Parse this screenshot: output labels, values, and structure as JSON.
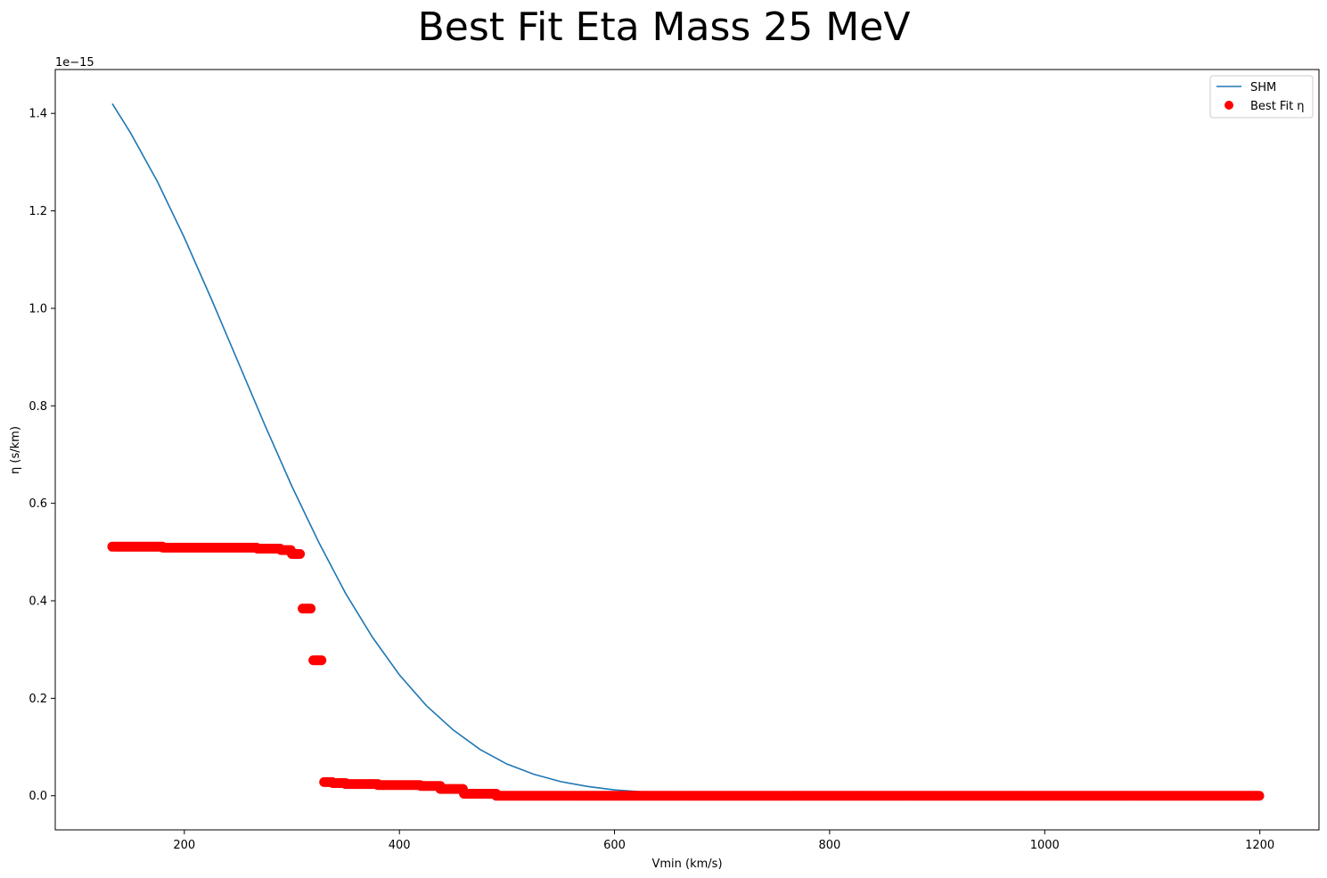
{
  "chart_data": {
    "type": "scatter",
    "title": "Best Fit Eta Mass 25 MeV",
    "xlabel": "Vmin (km/s)",
    "ylabel": "η (s/km)",
    "y_offset_label": "1e−15",
    "xlim": [
      80,
      1255
    ],
    "ylim": [
      -0.07,
      1.49
    ],
    "x_ticks": [
      200,
      400,
      600,
      800,
      1000,
      1200
    ],
    "x_tick_labels": [
      "200",
      "400",
      "600",
      "800",
      "1000",
      "1200"
    ],
    "y_ticks": [
      0.0,
      0.2,
      0.4,
      0.6,
      0.8,
      1.0,
      1.2,
      1.4
    ],
    "y_tick_labels": [
      "0.0",
      "0.2",
      "0.4",
      "0.6",
      "0.8",
      "1.0",
      "1.2",
      "1.4"
    ],
    "grid": false,
    "legend_placement": "top-right",
    "series": [
      {
        "name": "SHM",
        "kind": "line",
        "color": "#1f77b4",
        "x": [
          133,
          150,
          175,
          200,
          225,
          250,
          275,
          300,
          325,
          350,
          375,
          400,
          425,
          450,
          475,
          500,
          525,
          550,
          575,
          600,
          625,
          650,
          700,
          800,
          900,
          1000,
          1100,
          1200
        ],
        "y": [
          1.42,
          1.36,
          1.26,
          1.145,
          1.02,
          0.89,
          0.76,
          0.635,
          0.52,
          0.415,
          0.325,
          0.248,
          0.185,
          0.135,
          0.095,
          0.065,
          0.044,
          0.029,
          0.019,
          0.012,
          0.008,
          0.006,
          0.005,
          0.005,
          0.005,
          0.005,
          0.005,
          0.005
        ]
      },
      {
        "name": "Best Fit η",
        "kind": "scatter",
        "color": "#ff0000",
        "segments": [
          {
            "x_start": 133,
            "x_end": 180,
            "y": 0.511
          },
          {
            "x_start": 180,
            "x_end": 268,
            "y": 0.509
          },
          {
            "x_start": 268,
            "x_end": 290,
            "y": 0.507
          },
          {
            "x_start": 290,
            "x_end": 300,
            "y": 0.504
          },
          {
            "x_start": 300,
            "x_end": 308,
            "y": 0.496
          },
          {
            "x_start": 310,
            "x_end": 318,
            "y": 0.384
          },
          {
            "x_start": 320,
            "x_end": 328,
            "y": 0.278
          },
          {
            "x_start": 330,
            "x_end": 338,
            "y": 0.028
          },
          {
            "x_start": 338,
            "x_end": 350,
            "y": 0.026
          },
          {
            "x_start": 350,
            "x_end": 380,
            "y": 0.024
          },
          {
            "x_start": 380,
            "x_end": 420,
            "y": 0.022
          },
          {
            "x_start": 420,
            "x_end": 438,
            "y": 0.02
          },
          {
            "x_start": 438,
            "x_end": 460,
            "y": 0.014
          },
          {
            "x_start": 460,
            "x_end": 490,
            "y": 0.004
          },
          {
            "x_start": 490,
            "x_end": 1200,
            "y": 0.0
          }
        ]
      }
    ]
  }
}
